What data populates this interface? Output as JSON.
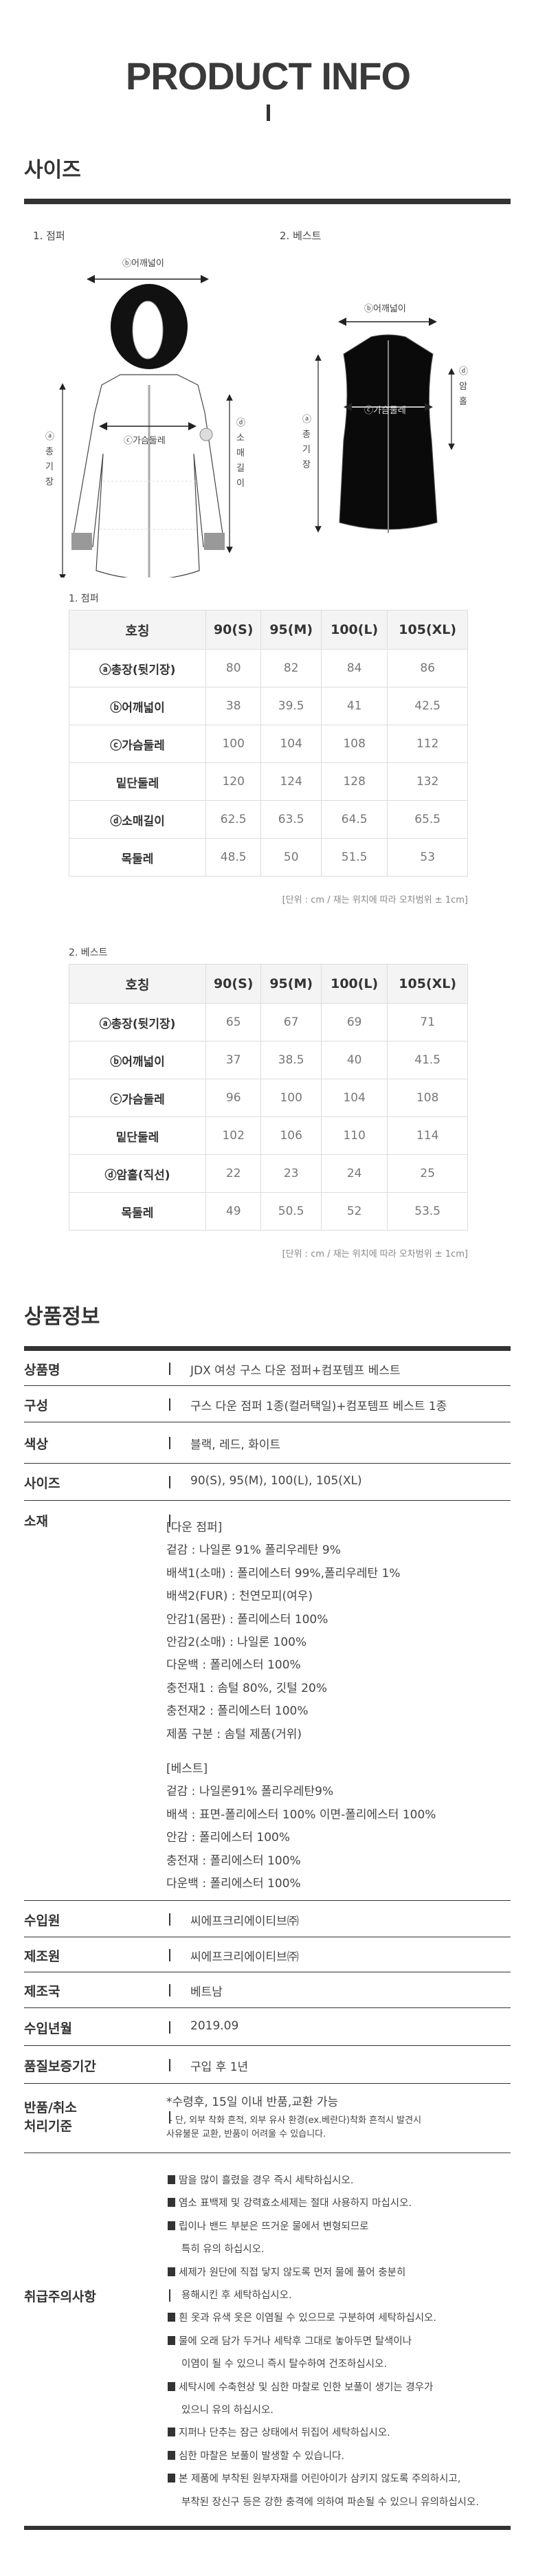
{
  "header": {
    "title": "PRODUCT INFO"
  },
  "size_section": {
    "heading": "사이즈",
    "diagrams": {
      "jumper": {
        "label": "1. 점퍼",
        "shoulder": "ⓑ어깨넓이",
        "chest": "ⓒ가슴둘레",
        "length": "ⓐ총기장",
        "sleeve": "ⓓ소매길이"
      },
      "vest": {
        "label": "2. 베스트",
        "shoulder": "ⓑ어깨넓이",
        "chest": "ⓒ가슴둘레",
        "length": "ⓐ총기장",
        "armhole": "ⓓ암홀"
      }
    },
    "tables": [
      {
        "label": "1. 점퍼",
        "headers": [
          "호칭",
          "90(S)",
          "95(M)",
          "100(L)",
          "105(XL)"
        ],
        "rows": [
          {
            "name": "ⓐ총장(뒷기장)",
            "values": [
              "80",
              "82",
              "84",
              "86"
            ]
          },
          {
            "name": "ⓑ어깨넓이",
            "values": [
              "38",
              "39.5",
              "41",
              "42.5"
            ]
          },
          {
            "name": "ⓒ가슴둘레",
            "values": [
              "100",
              "104",
              "108",
              "112"
            ]
          },
          {
            "name": "밑단둘레",
            "values": [
              "120",
              "124",
              "128",
              "132"
            ]
          },
          {
            "name": "ⓓ소매길이",
            "values": [
              "62.5",
              "63.5",
              "64.5",
              "65.5"
            ]
          },
          {
            "name": "목둘레",
            "values": [
              "48.5",
              "50",
              "51.5",
              "53"
            ]
          }
        ],
        "note": "[단위 : cm / 재는 위치에 따라 오차범위 ± 1cm]"
      },
      {
        "label": "2. 베스트",
        "headers": [
          "호칭",
          "90(S)",
          "95(M)",
          "100(L)",
          "105(XL)"
        ],
        "rows": [
          {
            "name": "ⓐ총장(뒷기장)",
            "values": [
              "65",
              "67",
              "69",
              "71"
            ]
          },
          {
            "name": "ⓑ어깨넓이",
            "values": [
              "37",
              "38.5",
              "40",
              "41.5"
            ]
          },
          {
            "name": "ⓒ가슴둘레",
            "values": [
              "96",
              "100",
              "104",
              "108"
            ]
          },
          {
            "name": "밑단둘레",
            "values": [
              "102",
              "106",
              "110",
              "114"
            ]
          },
          {
            "name": "ⓓ암홀(직선)",
            "values": [
              "22",
              "23",
              "24",
              "25"
            ]
          },
          {
            "name": "목둘레",
            "values": [
              "49",
              "50.5",
              "52",
              "53.5"
            ]
          }
        ],
        "note": "[단위 : cm / 재는 위치에 따라 오차범위 ± 1cm]"
      }
    ]
  },
  "product_info": {
    "heading": "상품정보",
    "rows": [
      {
        "label": "상품명",
        "value": "JDX 여성 구스 다운 점퍼+컴포템프 베스트"
      },
      {
        "label": "구성",
        "value": "구스 다운 점퍼 1종(컬러택일)+컴포템프 베스트 1종"
      },
      {
        "label": "색상",
        "value": "블랙, 레드, 화이트"
      },
      {
        "label": "사이즈",
        "value": "90(S), 95(M), 100(L), 105(XL)"
      }
    ],
    "material": {
      "label": "소재",
      "jumper": [
        "[다운 점퍼]",
        "겉감 : 나일론 91% 폴리우레탄 9%",
        "배색1(소매) : 폴리에스터 99%,폴리우레탄 1%",
        "배색2(FUR) : 천연모피(여우)",
        "안감1(몸판) : 폴리에스터 100%",
        "안감2(소매) : 나일론 100%",
        "다운백 : 폴리에스터 100%",
        "충전재1 : 솜털 80%, 깃털 20%",
        "충전재2 : 폴리에스터 100%",
        "제품 구분 : 솜털 제품(거위)"
      ],
      "vest": [
        "[베스트]",
        "겉감 : 나일론91% 폴리우레탄9%",
        "배색 : 표면-폴리에스터 100% 이면-폴리에스터 100%",
        "안감 : 폴리에스터 100%",
        "충전재 : 폴리에스터 100%",
        "다운백 : 폴리에스터 100%"
      ]
    },
    "rows2": [
      {
        "label": "수입원",
        "value": "씨에프크리에이티브㈜"
      },
      {
        "label": "제조원",
        "value": "씨에프크리에이티브㈜"
      },
      {
        "label": "제조국",
        "value": "베트남"
      },
      {
        "label": "수입년월",
        "value": "2019.09"
      },
      {
        "label": "품질보증기간",
        "value": "구입 후 1년"
      }
    ],
    "returns": {
      "label_1": "반품/취소",
      "label_2": "처리기준",
      "main": "*수령후, 15일 이내 반품,교환 가능",
      "sub_1": " - 단, 외부 착화 흔적, 외부 유사 환경(ex.베란다)착화 흔적시 발견시",
      "sub_2": "사유불문 교환, 반품이 어려울 수 있습니다."
    },
    "care": {
      "label": "취급주의사항",
      "items": [
        [
          "땀을 많이 흘렸을 경우 즉시 세탁하십시오."
        ],
        [
          "염소 표백제 및 강력효소세제는 절대 사용하지 마십시오."
        ],
        [
          "립이나 밴드 부분은 뜨거운 물에서 변형되므로",
          "특히 유의 하십시오."
        ],
        [
          "세제가 원단에 직접 닿지 않도록 먼저 물에 풀어 충분히",
          "용해시킨 후 세탁하십시오."
        ],
        [
          "흰 옷과 유색 옷은 이염될 수 있으므로 구분하여 세탁하십시오."
        ],
        [
          "물에 오래 담가 두거나 세탁후 그대로 놓아두면 탈색이나",
          "이염이 될 수 있으니 즉시 탈수하여 건조하십시오."
        ],
        [
          "세탁시에 수축현상 및 심한 마찰로 인한 보풀이 생기는 경우가",
          "있으니 유의 하십시오."
        ],
        [
          "지퍼나 단추는 잠근 상태에서 뒤집어 세탁하십시오."
        ],
        [
          "심한 마찰은 보풀이 발생할 수 있습니다."
        ],
        [
          "본 제품에 부착된 원부자재를 어린아이가 삼키지 않도록 주의하시고,",
          "부착된 장신구 등은 강한 충격에 의하여 파손될 수 있으니 유의하십시오."
        ]
      ]
    }
  }
}
